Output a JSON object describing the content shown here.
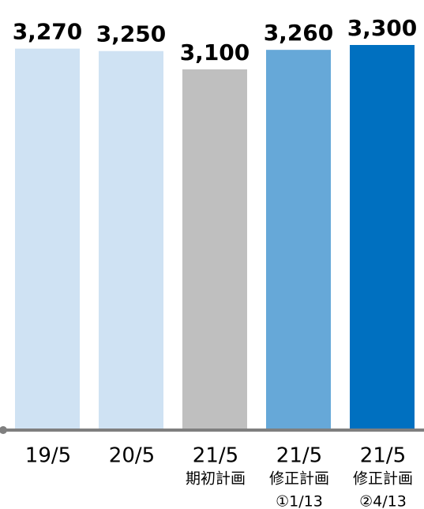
{
  "chart_data": {
    "type": "bar",
    "categories": [
      [
        "19/5"
      ],
      [
        "20/5"
      ],
      [
        "21/5",
        "期初計画"
      ],
      [
        "21/5",
        "修正計画",
        "①1/13"
      ],
      [
        "21/5",
        "修正計画",
        "②4/13"
      ]
    ],
    "values": [
      3270,
      3250,
      3100,
      3260,
      3300
    ],
    "value_labels": [
      "3,270",
      "3,250",
      "3,100",
      "3,260",
      "3,300"
    ],
    "colors": [
      "#cfe2f3",
      "#cfe2f3",
      "#bfbfbf",
      "#66a8d8",
      "#0070c0"
    ],
    "ylim": [
      150,
      3300
    ]
  }
}
